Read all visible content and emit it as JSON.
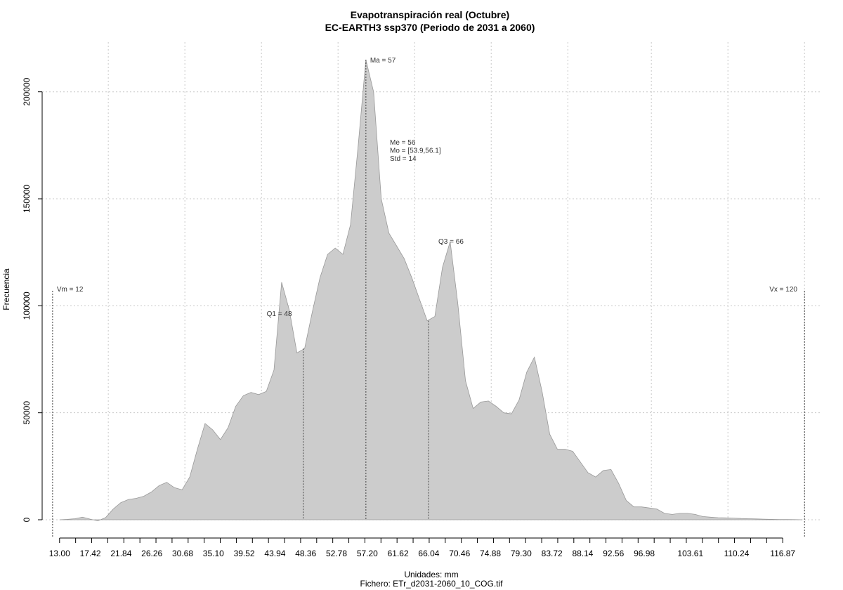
{
  "chart_data": {
    "type": "area",
    "title": "Evapotranspiración real (Octubre)",
    "subtitle": "EC-EARTH3 ssp370 (Periodo de 2031 a 2060)",
    "xlabel": "Unidades: mm",
    "caption": "Fichero: ETr_d2031-2060_10_COG.tif",
    "ylabel": "Frecuencia",
    "xlim": [
      10.5,
      122.5
    ],
    "ylim": [
      0,
      215000
    ],
    "x_ticks": [
      13.0,
      17.42,
      21.84,
      26.26,
      30.68,
      35.1,
      39.52,
      43.94,
      48.36,
      52.78,
      57.2,
      61.62,
      66.04,
      70.46,
      74.88,
      79.3,
      83.72,
      88.14,
      92.56,
      96.98,
      103.61,
      110.24,
      116.87
    ],
    "x_tick_labels": [
      "13.00",
      "17.42",
      "21.84",
      "26.26",
      "30.68",
      "35.10",
      "39.52",
      "43.94",
      "48.36",
      "52.78",
      "57.20",
      "61.62",
      "66.04",
      "70.46",
      "74.88",
      "79.30",
      "83.72",
      "88.14",
      "92.56",
      "96.98",
      "103.61",
      "110.24",
      "116.87"
    ],
    "y_ticks": [
      0,
      50000,
      100000,
      150000,
      200000
    ],
    "y_tick_labels": [
      "0",
      "50000",
      "100000",
      "150000",
      "200000"
    ],
    "x_grid": [
      20,
      31,
      42,
      53,
      64,
      75,
      86,
      98,
      109,
      120
    ],
    "y_grid": [
      0,
      50000,
      100000,
      150000,
      200000
    ],
    "grid": true,
    "series": [
      {
        "fill": "#cccccc",
        "stroke": "#999999",
        "x": [
          13.0,
          14.1,
          15.2,
          16.3,
          17.4,
          18.5,
          19.6,
          20.7,
          21.8,
          22.9,
          24.0,
          25.1,
          26.2,
          27.3,
          28.4,
          29.5,
          30.6,
          31.7,
          32.8,
          33.9,
          35.0,
          36.1,
          37.2,
          38.3,
          39.4,
          40.5,
          41.6,
          42.7,
          43.8,
          44.9,
          46.0,
          47.1,
          48.2,
          49.3,
          50.4,
          51.5,
          52.6,
          53.7,
          54.8,
          55.9,
          57.0,
          58.1,
          59.2,
          60.3,
          61.4,
          62.5,
          63.6,
          64.7,
          65.8,
          66.9,
          68.0,
          69.1,
          70.2,
          71.3,
          72.4,
          73.5,
          74.6,
          75.7,
          76.8,
          77.9,
          79.0,
          80.1,
          81.2,
          82.3,
          83.4,
          84.5,
          85.6,
          86.7,
          87.8,
          88.9,
          90.0,
          91.1,
          92.2,
          93.3,
          94.4,
          95.5,
          96.6,
          97.7,
          98.8,
          99.9,
          101.0,
          102.1,
          103.2,
          104.3,
          105.4,
          106.5,
          107.6,
          108.7,
          109.8,
          110.9,
          112.0,
          113.1,
          114.2,
          115.3,
          116.4,
          117.5,
          118.6,
          119.7
        ],
        "y": [
          0,
          200,
          500,
          1200,
          300,
          -500,
          1000,
          5000,
          8000,
          9500,
          10000,
          11000,
          13000,
          16000,
          17500,
          15000,
          14000,
          20000,
          33000,
          45000,
          42000,
          37500,
          43000,
          53000,
          58000,
          59500,
          58500,
          60000,
          70000,
          111000,
          98000,
          78000,
          80000,
          97000,
          113000,
          124000,
          127000,
          124000,
          138000,
          175000,
          215000,
          200000,
          150000,
          134000,
          128000,
          122000,
          113000,
          103000,
          93000,
          95000,
          118000,
          130000,
          101000,
          65000,
          52000,
          55000,
          55500,
          53000,
          50000,
          49500,
          56000,
          69000,
          76000,
          60000,
          40000,
          33000,
          33000,
          32000,
          27000,
          22000,
          20000,
          23000,
          23500,
          17000,
          9000,
          6000,
          6000,
          5500,
          5000,
          3000,
          2500,
          3000,
          3000,
          2500,
          1500,
          1200,
          1000,
          900,
          800,
          600,
          500,
          400,
          300,
          200,
          100,
          100,
          50,
          0
        ]
      }
    ],
    "vlines": [
      {
        "x": 12,
        "label": "Vm = 12",
        "top": 107000
      },
      {
        "x": 48,
        "label": "Q1 = 48"
      },
      {
        "x": 57,
        "label": "Ma = 57",
        "top": 215000
      },
      {
        "x": 66,
        "label": "Q3 = 66"
      },
      {
        "x": 120,
        "label": "Vx = 120",
        "top": 107000
      }
    ],
    "stats_text": [
      "Me = 56",
      "Mo = [53.9,56.1]",
      "Std = 14"
    ]
  }
}
